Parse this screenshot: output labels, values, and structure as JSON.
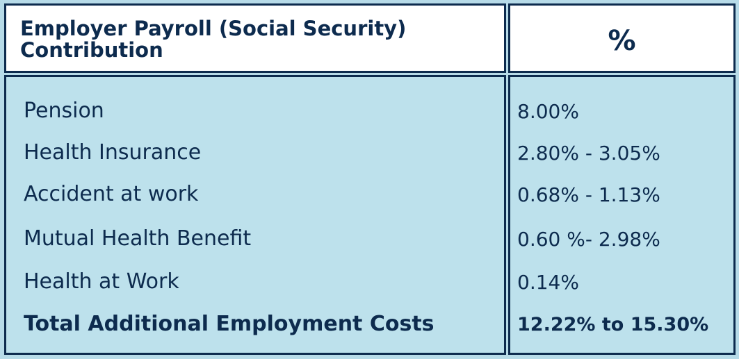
{
  "header": {
    "title": "Employer Payroll (Social Security) Contribution",
    "percent_col": "%"
  },
  "rows": [
    {
      "label": "Pension",
      "value": "8.00%"
    },
    {
      "label": "Health Insurance",
      "value": "2.80% - 3.05%"
    },
    {
      "label": "Accident at work",
      "value": "0.68% - 1.13%"
    },
    {
      "label": "Mutual Health Benefit",
      "value": "0.60 %- 2.98%"
    },
    {
      "label": "Health at Work",
      "value": "0.14%"
    }
  ],
  "total": {
    "label": "Total Additional Employment Costs",
    "value": "12.22% to 15.30%"
  },
  "colors": {
    "border": "#0d2b4e",
    "body_bg": "#bde1ec",
    "header_bg": "#ffffff",
    "text": "#0d2b4e"
  }
}
